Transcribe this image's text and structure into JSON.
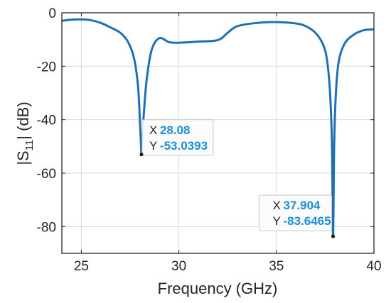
{
  "chart_data": {
    "type": "line",
    "xlabel": "Frequency (GHz)",
    "ylabel": {
      "prefix": "|S",
      "sub": "11",
      "suffix": "| (dB)"
    },
    "xlim": [
      24,
      40
    ],
    "ylim": [
      -90,
      0
    ],
    "xticks": [
      25,
      30,
      35,
      40
    ],
    "yticks": [
      0,
      -20,
      -40,
      -60,
      -80
    ],
    "grid": true,
    "colors": {
      "line": "#1f6fb5",
      "datatip_value": "#1a8fd6",
      "grid": "#d9d9d9",
      "axis": "#262626"
    },
    "series": [
      {
        "x": [
          24.0,
          24.5,
          25.0,
          25.5,
          26.0,
          26.5,
          27.0,
          27.4,
          27.7,
          27.9,
          28.0,
          28.05,
          28.08,
          28.12,
          28.2,
          28.35,
          28.6,
          29.0,
          29.5,
          30.0,
          31.0,
          32.0,
          32.5,
          33.0,
          34.0,
          35.0,
          36.0,
          36.5,
          37.0,
          37.4,
          37.6,
          37.75,
          37.85,
          37.904,
          37.96,
          38.05,
          38.2,
          38.5,
          39.0,
          39.5,
          40.0
        ],
        "y": [
          -3.0,
          -2.6,
          -2.5,
          -2.8,
          -3.8,
          -5.5,
          -7.5,
          -11.0,
          -17.0,
          -27.0,
          -40.0,
          -48.0,
          -53.0393,
          -48.0,
          -38.0,
          -25.0,
          -14.0,
          -9.5,
          -11.0,
          -11.2,
          -10.8,
          -10.2,
          -7.5,
          -5.0,
          -3.8,
          -3.5,
          -4.0,
          -5.0,
          -7.5,
          -12.0,
          -18.0,
          -30.0,
          -50.0,
          -83.6465,
          -50.0,
          -30.0,
          -18.0,
          -11.5,
          -8.0,
          -6.5,
          -6.2
        ]
      }
    ],
    "datatips": [
      {
        "x_label": "X",
        "x_value": "28.08",
        "y_label": "Y",
        "y_value": "-53.0393",
        "x": 28.08,
        "y": -53.0393
      },
      {
        "x_label": "X",
        "x_value": "37.904",
        "y_label": "Y",
        "y_value": "-83.6465",
        "x": 37.904,
        "y": -83.6465
      }
    ]
  }
}
